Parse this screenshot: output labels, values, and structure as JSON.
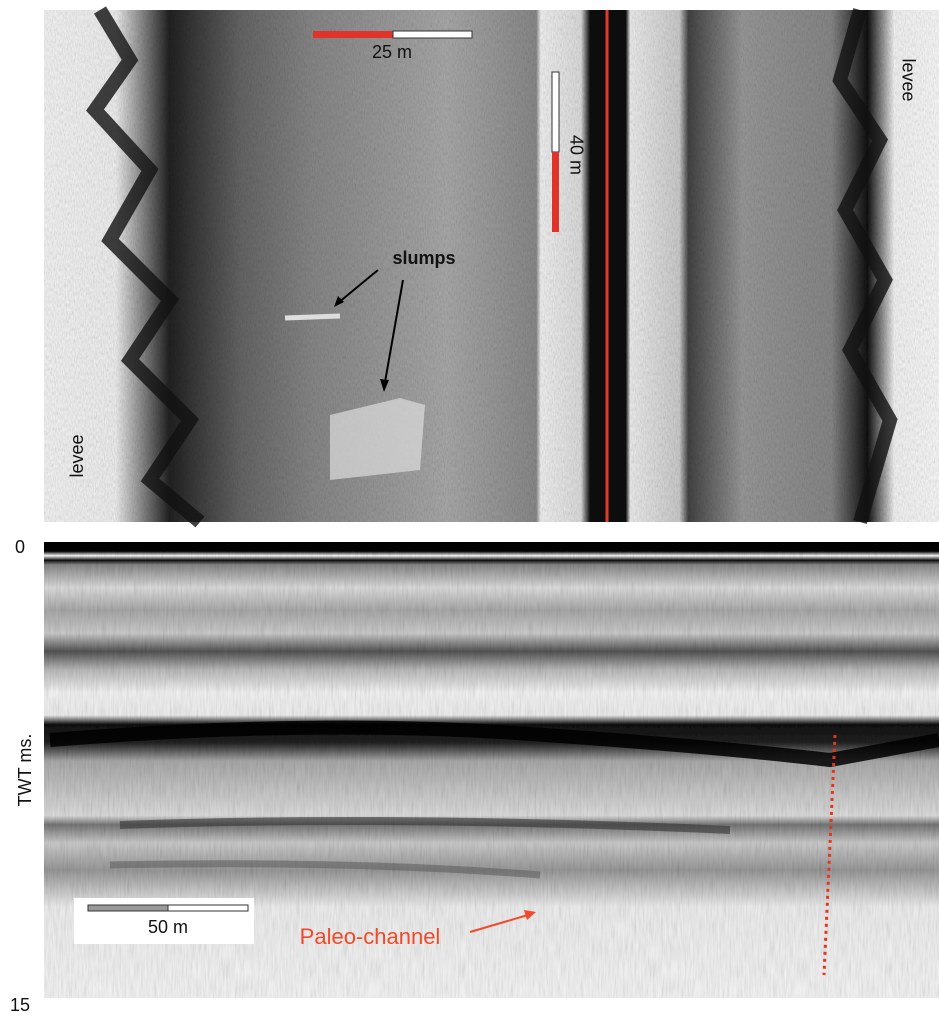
{
  "top_panel": {
    "levee_left": "levee",
    "levee_right": "levee",
    "scale_horizontal": "25 m",
    "scale_vertical": "40 m",
    "annotation": "slumps"
  },
  "bottom_panel": {
    "axis_top": "0",
    "axis_bottom": "15",
    "axis_label": "TWT ms.",
    "scale": "50 m",
    "annotation": "Paleo-channel"
  }
}
